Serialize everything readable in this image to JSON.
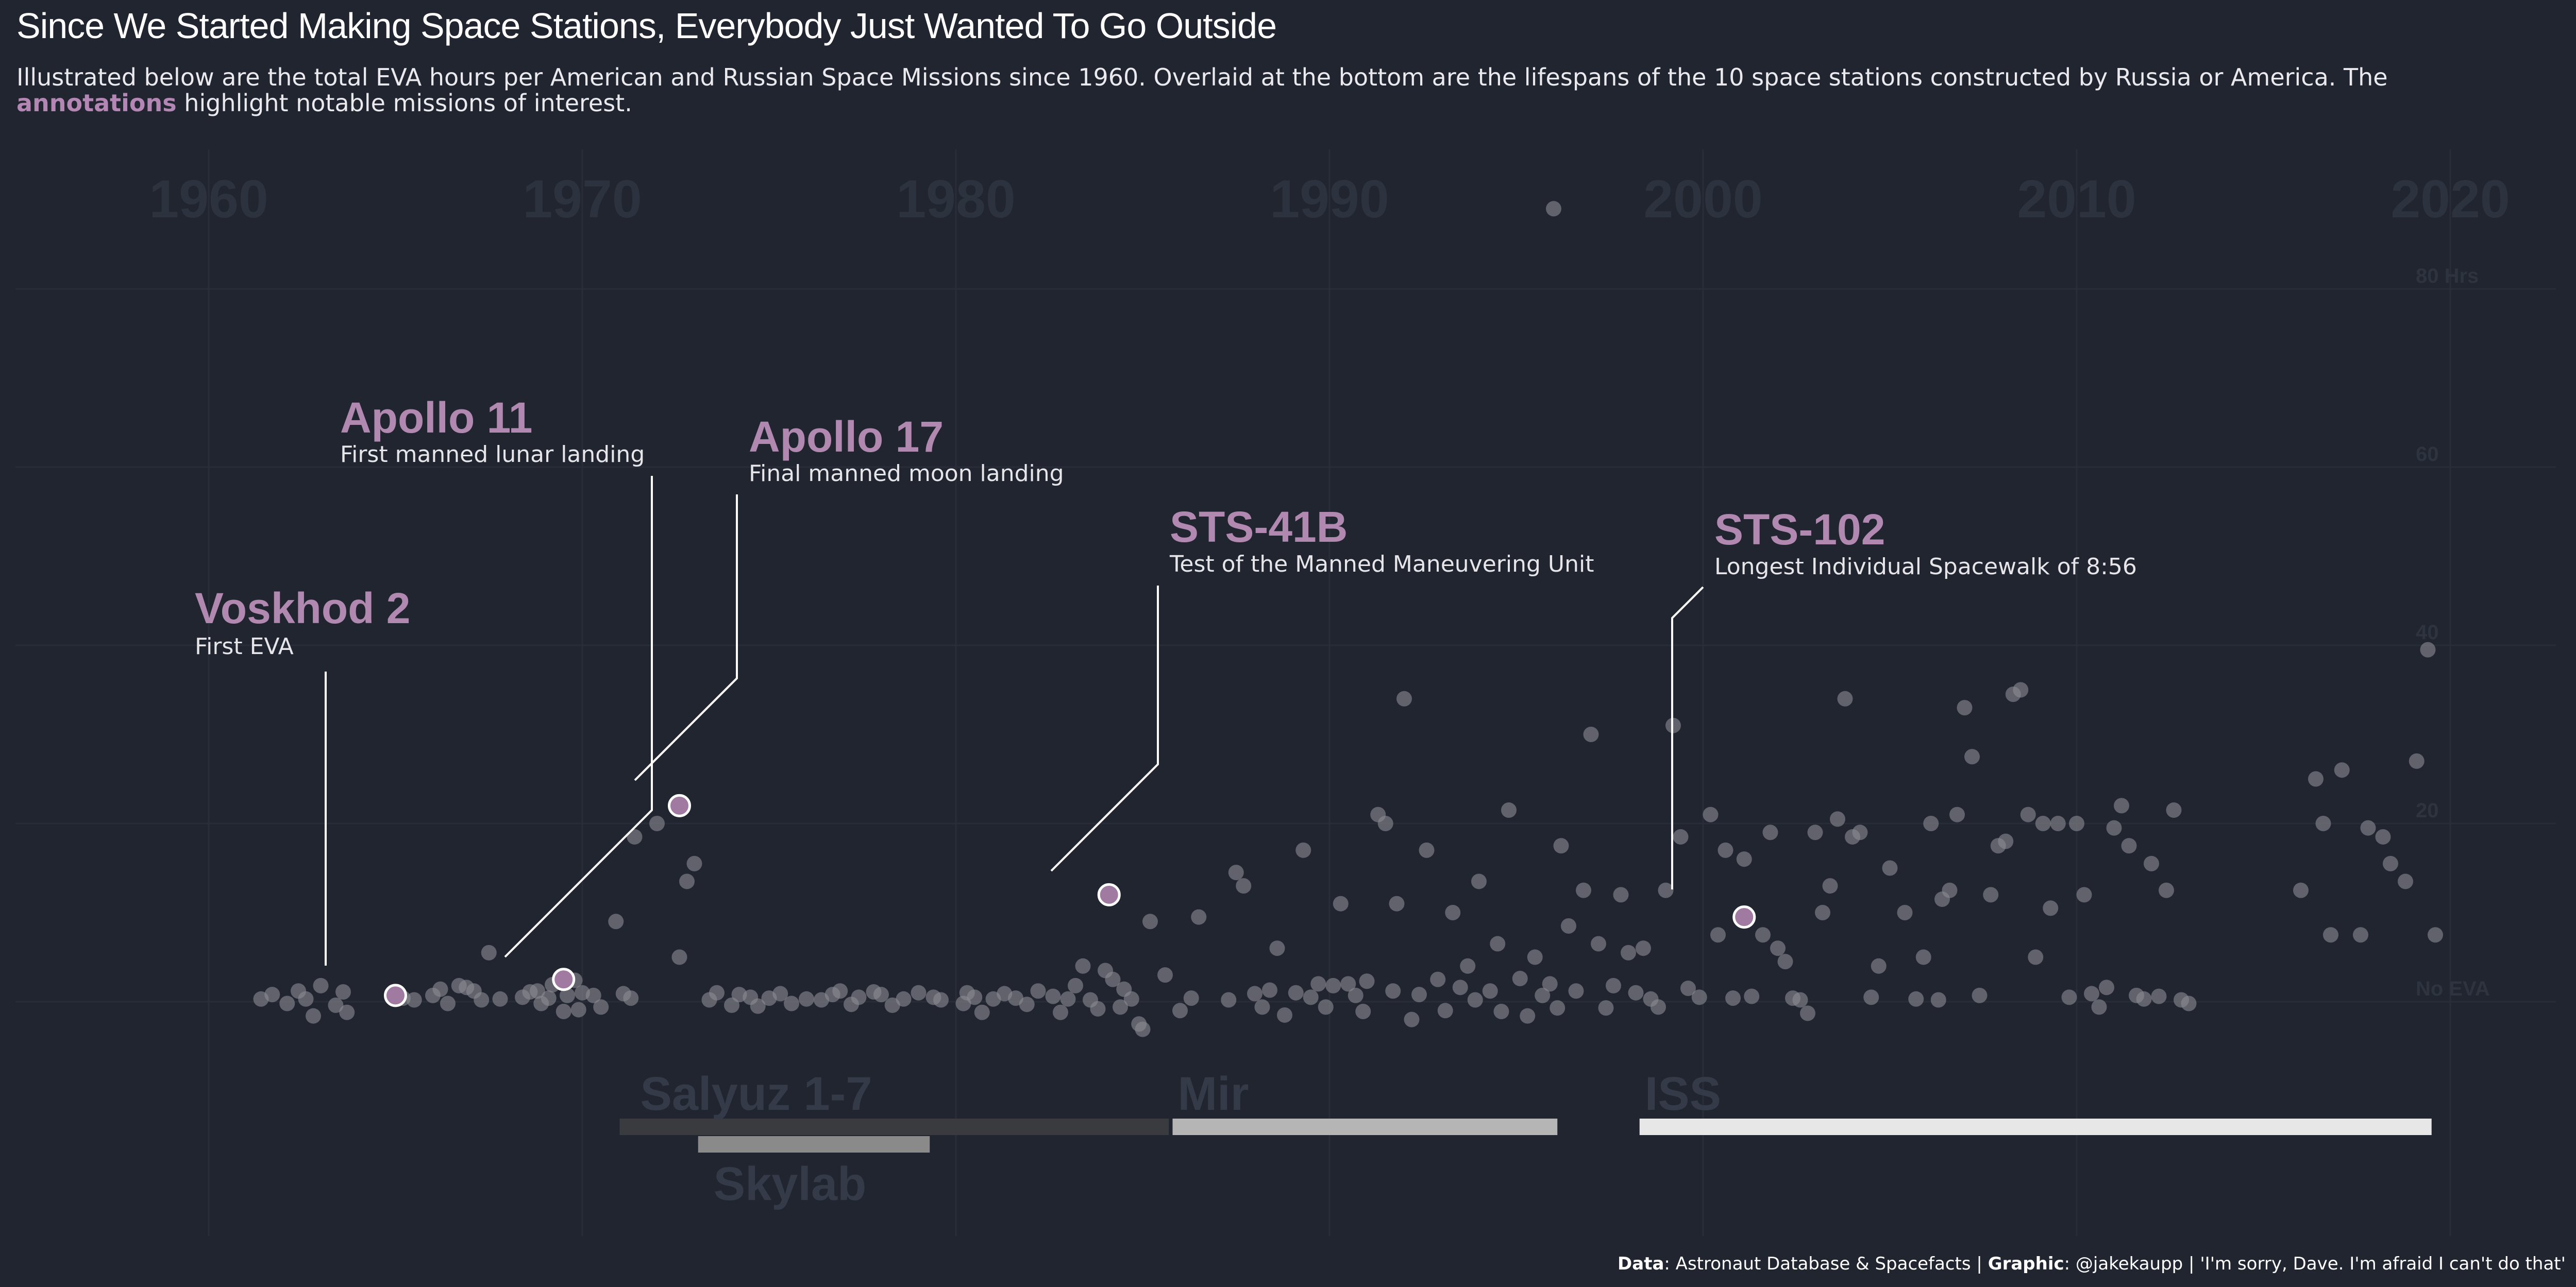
{
  "header": {
    "title": "Since We Started Making Space Stations, Everybody Just Wanted To Go Outside",
    "subtitle_before": "Illustrated below are the total EVA hours per American and Russian Space Missions since 1960. Overlaid at the bottom are the lifespans of the 10 space stations constructed by Russia or America. The",
    "subtitle_accent": "annotations",
    "subtitle_after": "highlight notable missions of interest."
  },
  "caption": {
    "data_label": "Data",
    "data_text": ": Astronaut Database & Spacefacts | ",
    "graphic_label": "Graphic",
    "graphic_text": ": @jakekaupp | 'I'm sorry, Dave. I'm afraid I can't do that'"
  },
  "colors": {
    "background": "#212530",
    "accent": "#b486b4",
    "point": "#8c8c93",
    "highlight_point": "#a07aa0"
  },
  "chart_data": {
    "type": "scatter",
    "title": "Since We Started Making Space Stations, Everybody Just Wanted To Go Outside",
    "x_ticks": [
      "1960",
      "1970",
      "1980",
      "1990",
      "2000",
      "2010",
      "2020"
    ],
    "y_ticks": [
      "No EVA",
      "20",
      "40",
      "60",
      "80 Hrs"
    ],
    "xlim": [
      1958,
      2021
    ],
    "ylim": [
      -5,
      85
    ],
    "grid": true,
    "points": [
      [
        1961.4,
        0.3
      ],
      [
        1961.7,
        0.8
      ],
      [
        1962.1,
        -0.2
      ],
      [
        1962.4,
        1.2
      ],
      [
        1962.6,
        0.3
      ],
      [
        1962.8,
        -1.6
      ],
      [
        1963.0,
        1.8
      ],
      [
        1963.4,
        -0.4
      ],
      [
        1963.6,
        1.1
      ],
      [
        1963.7,
        -1.2
      ],
      [
        1965.2,
        0.4
      ],
      [
        1965.5,
        0.2
      ],
      [
        1966.0,
        0.7
      ],
      [
        1966.2,
        1.4
      ],
      [
        1966.4,
        -0.2
      ],
      [
        1966.7,
        1.8
      ],
      [
        1966.9,
        1.6
      ],
      [
        1967.1,
        1.2
      ],
      [
        1967.3,
        0.2
      ],
      [
        1967.5,
        5.5
      ],
      [
        1967.8,
        0.3
      ],
      [
        1968.4,
        0.5
      ],
      [
        1968.6,
        1.1
      ],
      [
        1968.8,
        1.2
      ],
      [
        1968.9,
        -0.2
      ],
      [
        1969.1,
        0.4
      ],
      [
        1969.2,
        1.9
      ],
      [
        1969.5,
        -1.1
      ],
      [
        1969.6,
        0.7
      ],
      [
        1969.8,
        2.4
      ],
      [
        1969.9,
        -0.9
      ],
      [
        1970.0,
        1.0
      ],
      [
        1970.3,
        0.7
      ],
      [
        1970.5,
        -0.6
      ],
      [
        1970.9,
        9.0
      ],
      [
        1971.1,
        0.9
      ],
      [
        1971.3,
        0.4
      ],
      [
        1971.4,
        18.5
      ],
      [
        1972.0,
        20.0
      ],
      [
        1972.6,
        5.0
      ],
      [
        1972.8,
        13.5
      ],
      [
        1973.0,
        15.5
      ],
      [
        1973.4,
        0.2
      ],
      [
        1973.6,
        1.0
      ],
      [
        1974.0,
        -0.4
      ],
      [
        1974.2,
        0.8
      ],
      [
        1974.5,
        0.5
      ],
      [
        1974.7,
        -0.5
      ],
      [
        1975.0,
        0.4
      ],
      [
        1975.3,
        0.9
      ],
      [
        1975.6,
        -0.2
      ],
      [
        1976.0,
        0.3
      ],
      [
        1976.4,
        0.2
      ],
      [
        1976.7,
        0.8
      ],
      [
        1976.9,
        1.2
      ],
      [
        1977.2,
        -0.3
      ],
      [
        1977.4,
        0.5
      ],
      [
        1977.8,
        1.1
      ],
      [
        1978.0,
        0.8
      ],
      [
        1978.3,
        -0.4
      ],
      [
        1978.6,
        0.3
      ],
      [
        1979.0,
        1.0
      ],
      [
        1979.4,
        0.5
      ],
      [
        1979.6,
        0.2
      ],
      [
        1980.2,
        -0.2
      ],
      [
        1980.3,
        1.0
      ],
      [
        1980.5,
        0.5
      ],
      [
        1980.7,
        -1.2
      ],
      [
        1981.0,
        0.3
      ],
      [
        1981.3,
        0.9
      ],
      [
        1981.6,
        0.4
      ],
      [
        1981.9,
        -0.3
      ],
      [
        1982.2,
        1.2
      ],
      [
        1982.6,
        0.6
      ],
      [
        1982.8,
        -1.2
      ],
      [
        1983.0,
        0.3
      ],
      [
        1983.2,
        1.8
      ],
      [
        1983.4,
        4.0
      ],
      [
        1983.6,
        0.2
      ],
      [
        1983.8,
        -0.8
      ],
      [
        1984.0,
        3.5
      ],
      [
        1984.2,
        2.5
      ],
      [
        1984.4,
        -0.6
      ],
      [
        1984.5,
        1.4
      ],
      [
        1984.7,
        0.3
      ],
      [
        1984.9,
        -2.5
      ],
      [
        1985.0,
        -3.1
      ],
      [
        1985.2,
        9.0
      ],
      [
        1985.6,
        3.0
      ],
      [
        1986.0,
        -1.0
      ],
      [
        1986.3,
        0.4
      ],
      [
        1986.5,
        9.5
      ],
      [
        1987.3,
        0.2
      ],
      [
        1987.5,
        14.5
      ],
      [
        1987.7,
        13.0
      ],
      [
        1988.0,
        0.9
      ],
      [
        1988.2,
        -0.6
      ],
      [
        1988.4,
        1.3
      ],
      [
        1988.6,
        6.0
      ],
      [
        1988.8,
        -1.5
      ],
      [
        1989.1,
        1.0
      ],
      [
        1989.3,
        17.0
      ],
      [
        1989.5,
        0.5
      ],
      [
        1989.7,
        2.0
      ],
      [
        1989.9,
        -0.6
      ],
      [
        1990.1,
        1.8
      ],
      [
        1990.3,
        11.0
      ],
      [
        1990.5,
        2.0
      ],
      [
        1990.7,
        0.7
      ],
      [
        1990.9,
        -1.1
      ],
      [
        1991.0,
        2.3
      ],
      [
        1991.3,
        21.0
      ],
      [
        1991.5,
        20.0
      ],
      [
        1991.7,
        1.2
      ],
      [
        1991.8,
        11.0
      ],
      [
        1992.0,
        34.0
      ],
      [
        1992.2,
        -2.0
      ],
      [
        1992.4,
        0.8
      ],
      [
        1992.6,
        17.0
      ],
      [
        1992.9,
        2.5
      ],
      [
        1993.1,
        -1.0
      ],
      [
        1993.3,
        10.0
      ],
      [
        1993.5,
        1.6
      ],
      [
        1993.7,
        4.0
      ],
      [
        1993.9,
        0.2
      ],
      [
        1994.0,
        13.5
      ],
      [
        1994.3,
        1.2
      ],
      [
        1994.5,
        6.5
      ],
      [
        1994.6,
        -1.1
      ],
      [
        1994.8,
        21.5
      ],
      [
        1995.1,
        2.6
      ],
      [
        1995.3,
        -1.6
      ],
      [
        1995.5,
        5.0
      ],
      [
        1995.7,
        0.7
      ],
      [
        1995.9,
        2.0
      ],
      [
        1996.1,
        -0.7
      ],
      [
        1996.2,
        17.5
      ],
      [
        1996.4,
        8.5
      ],
      [
        1996.6,
        1.2
      ],
      [
        1996.8,
        12.5
      ],
      [
        1997.0,
        30.0
      ],
      [
        1997.2,
        6.5
      ],
      [
        1997.4,
        -0.7
      ],
      [
        1997.6,
        1.8
      ],
      [
        1997.8,
        12.0
      ],
      [
        1998.0,
        5.5
      ],
      [
        1998.2,
        1.0
      ],
      [
        1998.4,
        6.0
      ],
      [
        1998.6,
        0.3
      ],
      [
        1998.8,
        -0.6
      ],
      [
        1999.0,
        12.5
      ],
      [
        1999.2,
        31.0
      ],
      [
        1999.4,
        18.5
      ],
      [
        1999.6,
        1.5
      ],
      [
        1999.9,
        0.5
      ],
      [
        2000.2,
        21.0
      ],
      [
        2000.4,
        7.5
      ],
      [
        2000.6,
        17.0
      ],
      [
        2000.8,
        0.4
      ],
      [
        2001.1,
        16.0
      ],
      [
        2001.3,
        0.6
      ],
      [
        2001.6,
        7.5
      ],
      [
        2001.8,
        19.0
      ],
      [
        2002.0,
        6.0
      ],
      [
        2002.2,
        4.5
      ],
      [
        2002.4,
        0.4
      ],
      [
        2002.6,
        0.2
      ],
      [
        2002.8,
        -1.3
      ],
      [
        2003.0,
        19.0
      ],
      [
        2003.2,
        10.0
      ],
      [
        2003.4,
        13.0
      ],
      [
        2003.6,
        20.5
      ],
      [
        2003.8,
        34.0
      ],
      [
        2004.0,
        18.5
      ],
      [
        2004.2,
        19.0
      ],
      [
        2004.5,
        0.5
      ],
      [
        2004.7,
        4.0
      ],
      [
        2005.0,
        15.0
      ],
      [
        2005.4,
        10.0
      ],
      [
        2005.7,
        0.3
      ],
      [
        2005.9,
        5.0
      ],
      [
        2006.1,
        20.0
      ],
      [
        2006.3,
        0.2
      ],
      [
        2006.4,
        11.5
      ],
      [
        2006.6,
        12.5
      ],
      [
        2006.8,
        21.0
      ],
      [
        2007.0,
        33.0
      ],
      [
        2007.2,
        27.5
      ],
      [
        2007.4,
        0.7
      ],
      [
        2007.7,
        12.0
      ],
      [
        2007.9,
        17.5
      ],
      [
        2008.1,
        18.0
      ],
      [
        2008.3,
        34.5
      ],
      [
        2008.5,
        35.0
      ],
      [
        2008.7,
        21.0
      ],
      [
        2008.9,
        5.0
      ],
      [
        2009.1,
        20.0
      ],
      [
        2009.3,
        10.5
      ],
      [
        2009.5,
        20.0
      ],
      [
        2009.8,
        0.5
      ],
      [
        2010.0,
        20.0
      ],
      [
        2010.2,
        12.0
      ],
      [
        2010.4,
        0.9
      ],
      [
        2010.6,
        -0.6
      ],
      [
        2010.8,
        1.6
      ],
      [
        2011.0,
        19.5
      ],
      [
        2011.2,
        22.0
      ],
      [
        2011.4,
        17.5
      ],
      [
        2011.6,
        0.7
      ],
      [
        2011.8,
        0.3
      ],
      [
        2012.0,
        15.5
      ],
      [
        2012.2,
        0.6
      ],
      [
        2012.4,
        12.5
      ],
      [
        2012.6,
        21.5
      ],
      [
        2012.8,
        0.2
      ],
      [
        2013.0,
        -0.2
      ],
      [
        2016.0,
        12.5
      ],
      [
        2016.4,
        25.0
      ],
      [
        2016.6,
        20.0
      ],
      [
        2016.8,
        7.5
      ],
      [
        2017.1,
        26.0
      ],
      [
        2017.6,
        7.5
      ],
      [
        2017.8,
        19.5
      ],
      [
        2018.2,
        18.5
      ],
      [
        2018.4,
        15.5
      ],
      [
        2018.8,
        13.5
      ],
      [
        2019.1,
        27.0
      ],
      [
        2019.4,
        39.5
      ],
      [
        2019.6,
        7.5
      ],
      [
        1996.0,
        89.0
      ]
    ],
    "highlights": [
      {
        "name": "Voskhod 2",
        "x": 1965.0,
        "y": 0.7
      },
      {
        "name": "Apollo 11",
        "x": 1969.5,
        "y": 2.5
      },
      {
        "name": "Apollo 17",
        "x": 1972.6,
        "y": 22.0
      },
      {
        "name": "STS-41B",
        "x": 1984.1,
        "y": 12.0
      },
      {
        "name": "STS-102",
        "x": 2001.1,
        "y": 9.5
      }
    ],
    "annotations": [
      {
        "title": "Voskhod 2",
        "text": "First EVA"
      },
      {
        "title": "Apollo 11",
        "text": "First manned lunar landing"
      },
      {
        "title": "Apollo 17",
        "text": "Final manned moon landing"
      },
      {
        "title": "STS-41B",
        "text": "Test of the Manned Maneuvering Unit"
      },
      {
        "title": "STS-102",
        "text": "Longest Individual Spacewalk of 8:56"
      }
    ],
    "stations": [
      {
        "name": "Salyuz 1-7",
        "start": 1971.0,
        "end": 1985.7,
        "color": "#3a3b3e"
      },
      {
        "name": "Skylab",
        "start": 1973.1,
        "end": 1979.3,
        "color": "#8a8a8a"
      },
      {
        "name": "Mir",
        "start": 1985.8,
        "end": 1996.1,
        "color": "#b5b5b5"
      },
      {
        "name": "ISS",
        "start": 1998.3,
        "end": 2019.5,
        "color": "#e7e7e7"
      }
    ]
  }
}
